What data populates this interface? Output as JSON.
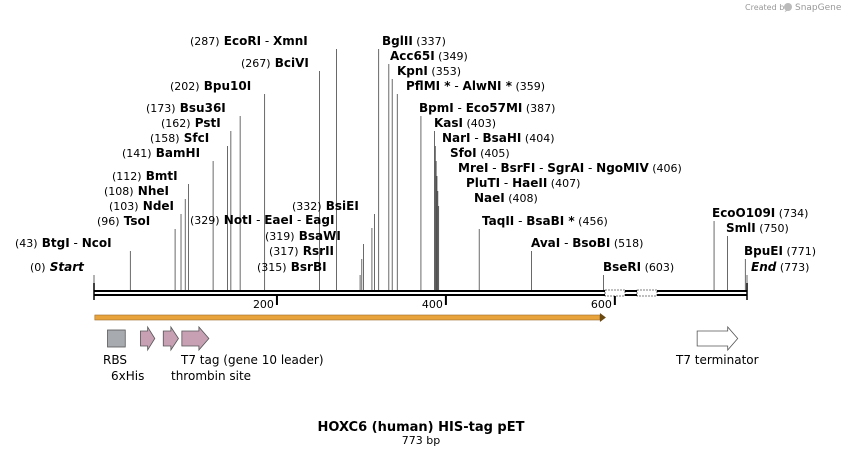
{
  "branding": {
    "created_by": "Created by",
    "product": "SnapGene"
  },
  "map": {
    "title": "HOXC6 (human) HIS-tag pET",
    "length_label": "773 bp",
    "length": 773,
    "axis_ticks": [
      {
        "value": 200,
        "label": "200"
      },
      {
        "value": 400,
        "label": "400"
      },
      {
        "value": 600,
        "label": "600"
      }
    ],
    "sites": [
      {
        "pos": 0,
        "parts": [
          [
            "(0)",
            "n"
          ],
          [
            "Start",
            "bi"
          ]
        ]
      },
      {
        "pos": 43,
        "parts": [
          [
            "(43)",
            "n"
          ],
          [
            "BtgI",
            "b"
          ],
          [
            "-",
            "d"
          ],
          [
            "NcoI",
            "b"
          ]
        ]
      },
      {
        "pos": 96,
        "parts": [
          [
            "(96)",
            "n"
          ],
          [
            "TsoI",
            "b"
          ]
        ]
      },
      {
        "pos": 103,
        "parts": [
          [
            "(103)",
            "n"
          ],
          [
            "NdeI",
            "b"
          ]
        ]
      },
      {
        "pos": 108,
        "parts": [
          [
            "(108)",
            "n"
          ],
          [
            "NheI",
            "b"
          ]
        ]
      },
      {
        "pos": 112,
        "parts": [
          [
            "(112)",
            "n"
          ],
          [
            "BmtI",
            "b"
          ]
        ]
      },
      {
        "pos": 141,
        "parts": [
          [
            "(141)",
            "n"
          ],
          [
            "BamHI",
            "b"
          ]
        ]
      },
      {
        "pos": 158,
        "parts": [
          [
            "(158)",
            "n"
          ],
          [
            "SfcI",
            "b"
          ]
        ]
      },
      {
        "pos": 162,
        "parts": [
          [
            "(162)",
            "n"
          ],
          [
            "PstI",
            "b"
          ]
        ]
      },
      {
        "pos": 173,
        "parts": [
          [
            "(173)",
            "n"
          ],
          [
            "Bsu36I",
            "b"
          ]
        ]
      },
      {
        "pos": 202,
        "parts": [
          [
            "(202)",
            "n"
          ],
          [
            "Bpu10I",
            "b"
          ]
        ]
      },
      {
        "pos": 267,
        "parts": [
          [
            "(267)",
            "n"
          ],
          [
            "BciVI",
            "b"
          ]
        ]
      },
      {
        "pos": 287,
        "parts": [
          [
            "(287)",
            "n"
          ],
          [
            "EcoRI",
            "b"
          ],
          [
            "-",
            "d"
          ],
          [
            "XmnI",
            "b"
          ]
        ]
      },
      {
        "pos": 329,
        "parts": [
          [
            "(329)",
            "n"
          ],
          [
            "NotI",
            "b"
          ],
          [
            "-",
            "d"
          ],
          [
            "EaeI",
            "b"
          ],
          [
            "-",
            "d"
          ],
          [
            "EagI",
            "b"
          ]
        ]
      },
      {
        "pos": 315,
        "parts": [
          [
            "(315)",
            "n"
          ],
          [
            "BsrBI",
            "b"
          ]
        ]
      },
      {
        "pos": 317,
        "parts": [
          [
            "(317)",
            "n"
          ],
          [
            "RsrII",
            "b"
          ]
        ]
      },
      {
        "pos": 319,
        "parts": [
          [
            "(319)",
            "n"
          ],
          [
            "BsaWI",
            "b"
          ]
        ]
      },
      {
        "pos": 332,
        "parts": [
          [
            "(332)",
            "n"
          ],
          [
            "BsiEI",
            "b"
          ]
        ]
      },
      {
        "pos": 337,
        "parts": [
          [
            "BglII",
            "b"
          ],
          [
            "(337)",
            "n"
          ]
        ]
      },
      {
        "pos": 349,
        "parts": [
          [
            "Acc65I",
            "b"
          ],
          [
            "(349)",
            "n"
          ]
        ]
      },
      {
        "pos": 353,
        "parts": [
          [
            "KpnI",
            "b"
          ],
          [
            "(353)",
            "n"
          ]
        ]
      },
      {
        "pos": 359,
        "parts": [
          [
            "PflMI *",
            "b"
          ],
          [
            "-",
            "d"
          ],
          [
            "AlwNI *",
            "b"
          ],
          [
            "(359)",
            "n"
          ]
        ]
      },
      {
        "pos": 387,
        "parts": [
          [
            "BpmI",
            "b"
          ],
          [
            "-",
            "d"
          ],
          [
            "Eco57MI",
            "b"
          ],
          [
            "(387)",
            "n"
          ]
        ]
      },
      {
        "pos": 403,
        "parts": [
          [
            "KasI",
            "b"
          ],
          [
            "(403)",
            "n"
          ]
        ]
      },
      {
        "pos": 404,
        "parts": [
          [
            "NarI",
            "b"
          ],
          [
            "-",
            "d"
          ],
          [
            "BsaHI",
            "b"
          ],
          [
            "(404)",
            "n"
          ]
        ]
      },
      {
        "pos": 405,
        "parts": [
          [
            "SfoI",
            "b"
          ],
          [
            "(405)",
            "n"
          ]
        ]
      },
      {
        "pos": 406,
        "parts": [
          [
            "MreI",
            "b"
          ],
          [
            "-",
            "d"
          ],
          [
            "BsrFI",
            "b"
          ],
          [
            "-",
            "d"
          ],
          [
            "SgrAI",
            "b"
          ],
          [
            "-",
            "d"
          ],
          [
            "NgoMIV",
            "b"
          ],
          [
            "(406)",
            "n"
          ]
        ]
      },
      {
        "pos": 407,
        "parts": [
          [
            "PluTI",
            "b"
          ],
          [
            "-",
            "d"
          ],
          [
            "HaeII",
            "b"
          ],
          [
            "(407)",
            "n"
          ]
        ]
      },
      {
        "pos": 408,
        "parts": [
          [
            "NaeI",
            "b"
          ],
          [
            "(408)",
            "n"
          ]
        ]
      },
      {
        "pos": 456,
        "parts": [
          [
            "TaqII",
            "b"
          ],
          [
            "-",
            "d"
          ],
          [
            "BsaBI *",
            "b"
          ],
          [
            "(456)",
            "n"
          ]
        ]
      },
      {
        "pos": 518,
        "parts": [
          [
            "AvaI",
            "b"
          ],
          [
            "-",
            "d"
          ],
          [
            "BsoBI",
            "b"
          ],
          [
            "(518)",
            "n"
          ]
        ]
      },
      {
        "pos": 603,
        "parts": [
          [
            "BseRI",
            "b"
          ],
          [
            "(603)",
            "n"
          ]
        ]
      },
      {
        "pos": 734,
        "parts": [
          [
            "EcoO109I",
            "b"
          ],
          [
            "(734)",
            "n"
          ]
        ]
      },
      {
        "pos": 750,
        "parts": [
          [
            "SmlI",
            "b"
          ],
          [
            "(750)",
            "n"
          ]
        ]
      },
      {
        "pos": 771,
        "parts": [
          [
            "BpuEI",
            "b"
          ],
          [
            "(771)",
            "n"
          ]
        ]
      },
      {
        "pos": 773,
        "parts": [
          [
            "End",
            "bi"
          ],
          [
            "(773)",
            "n"
          ]
        ]
      }
    ],
    "orf": {
      "start": 1,
      "end": 606,
      "color": "#e8a33a"
    },
    "features": [
      {
        "name": "RBS",
        "type": "box",
        "start": 16,
        "end": 37,
        "color": "#a7abb0"
      },
      {
        "name": "6xHis",
        "type": "arrow",
        "start": 55,
        "end": 72,
        "color": "#c7a0b4"
      },
      {
        "name": "thrombin site",
        "type": "arrow",
        "start": 82,
        "end": 100,
        "color": "#c7a0b4"
      },
      {
        "name": "T7 tag (gene 10 leader)",
        "type": "arrow",
        "start": 104,
        "end": 136,
        "color": "#c7a0b4"
      },
      {
        "name": "T7 terminator",
        "type": "arrow",
        "start": 714,
        "end": 762,
        "color": "#ffffff"
      }
    ],
    "colors": {
      "backbone": "#000000",
      "orf_stroke": "#9a6a2a"
    }
  }
}
